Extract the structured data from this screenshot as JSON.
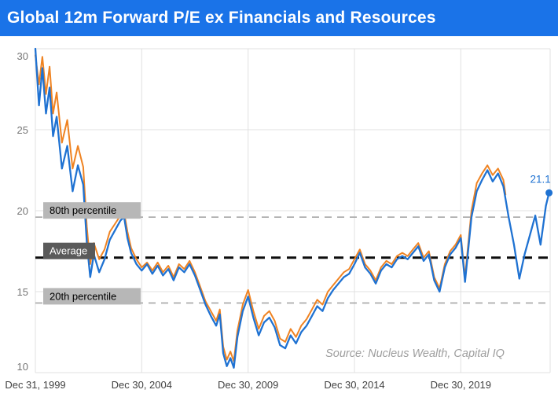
{
  "header": {
    "title": "Global 12m Forward P/E ex Financials and Resources",
    "bg_color": "#1a73e8",
    "text_color": "#ffffff"
  },
  "chart_data": {
    "type": "line",
    "title": "Global 12m Forward P/E ex Financials and Resources",
    "xlabel": "",
    "ylabel": "",
    "xlim": [
      2000,
      2024.2
    ],
    "ylim": [
      10,
      30
    ],
    "grid": true,
    "legend_position": "none",
    "yticks": [
      10,
      15,
      20,
      25,
      30
    ],
    "xticks": [
      {
        "value": 2000,
        "label": "Dec 31, 1999"
      },
      {
        "value": 2005,
        "label": "Dec 30, 2004"
      },
      {
        "value": 2010,
        "label": "Dec 30, 2009"
      },
      {
        "value": 2015,
        "label": "Dec 30, 2014"
      },
      {
        "value": 2020,
        "label": "Dec 30, 2019"
      }
    ],
    "reference_lines": [
      {
        "label": "80th percentile",
        "value": 19.6,
        "style": "dashed",
        "line_color": "#a6a6a6",
        "box_bg": "#b7b7b7",
        "text_color": "#000000"
      },
      {
        "label": "Average",
        "value": 17.1,
        "style": "dashed-bold",
        "line_color": "#0d0d0d",
        "box_bg": "#5a5a5a",
        "text_color": "#ffffff"
      },
      {
        "label": "20th percentile",
        "value": 14.3,
        "style": "dashed",
        "line_color": "#a6a6a6",
        "box_bg": "#b7b7b7",
        "text_color": "#000000"
      }
    ],
    "series": [
      {
        "name": "orange",
        "color": "#ef8322",
        "width": 2,
        "points": [
          [
            2000.0,
            29.6
          ],
          [
            2000.17,
            27.8
          ],
          [
            2000.33,
            29.5
          ],
          [
            2000.5,
            27.2
          ],
          [
            2000.67,
            28.9
          ],
          [
            2000.83,
            26.0
          ],
          [
            2001.0,
            27.3
          ],
          [
            2001.25,
            24.2
          ],
          [
            2001.5,
            25.6
          ],
          [
            2001.75,
            22.6
          ],
          [
            2002.0,
            24.0
          ],
          [
            2002.25,
            22.7
          ],
          [
            2002.42,
            19.0
          ],
          [
            2002.58,
            16.7
          ],
          [
            2002.75,
            18.0
          ],
          [
            2003.0,
            17.0
          ],
          [
            2003.25,
            17.6
          ],
          [
            2003.5,
            18.7
          ],
          [
            2003.75,
            19.2
          ],
          [
            2004.0,
            19.7
          ],
          [
            2004.17,
            19.9
          ],
          [
            2004.33,
            18.7
          ],
          [
            2004.5,
            17.7
          ],
          [
            2004.75,
            17.0
          ],
          [
            2005.0,
            16.5
          ],
          [
            2005.25,
            16.8
          ],
          [
            2005.5,
            16.3
          ],
          [
            2005.75,
            16.8
          ],
          [
            2006.0,
            16.2
          ],
          [
            2006.25,
            16.6
          ],
          [
            2006.5,
            15.9
          ],
          [
            2006.75,
            16.7
          ],
          [
            2007.0,
            16.4
          ],
          [
            2007.25,
            16.9
          ],
          [
            2007.5,
            16.2
          ],
          [
            2007.75,
            15.3
          ],
          [
            2008.0,
            14.4
          ],
          [
            2008.25,
            13.8
          ],
          [
            2008.5,
            13.2
          ],
          [
            2008.67,
            13.9
          ],
          [
            2008.83,
            11.6
          ],
          [
            2009.0,
            10.8
          ],
          [
            2009.17,
            11.3
          ],
          [
            2009.33,
            10.7
          ],
          [
            2009.5,
            12.6
          ],
          [
            2009.75,
            14.2
          ],
          [
            2010.0,
            15.1
          ],
          [
            2010.25,
            13.8
          ],
          [
            2010.5,
            12.7
          ],
          [
            2010.75,
            13.5
          ],
          [
            2011.0,
            13.8
          ],
          [
            2011.25,
            13.2
          ],
          [
            2011.5,
            12.1
          ],
          [
            2011.75,
            11.9
          ],
          [
            2012.0,
            12.7
          ],
          [
            2012.25,
            12.2
          ],
          [
            2012.5,
            12.9
          ],
          [
            2012.75,
            13.3
          ],
          [
            2013.0,
            13.9
          ],
          [
            2013.25,
            14.5
          ],
          [
            2013.5,
            14.2
          ],
          [
            2013.75,
            15.0
          ],
          [
            2014.0,
            15.4
          ],
          [
            2014.25,
            15.8
          ],
          [
            2014.5,
            16.2
          ],
          [
            2014.75,
            16.4
          ],
          [
            2015.0,
            17.0
          ],
          [
            2015.25,
            17.6
          ],
          [
            2015.5,
            16.7
          ],
          [
            2015.75,
            16.3
          ],
          [
            2016.0,
            15.7
          ],
          [
            2016.25,
            16.5
          ],
          [
            2016.5,
            16.9
          ],
          [
            2016.75,
            16.7
          ],
          [
            2017.0,
            17.2
          ],
          [
            2017.25,
            17.4
          ],
          [
            2017.5,
            17.2
          ],
          [
            2017.75,
            17.6
          ],
          [
            2018.0,
            18.0
          ],
          [
            2018.25,
            17.1
          ],
          [
            2018.5,
            17.5
          ],
          [
            2018.75,
            15.9
          ],
          [
            2019.0,
            15.2
          ],
          [
            2019.25,
            16.7
          ],
          [
            2019.5,
            17.5
          ],
          [
            2019.75,
            17.9
          ],
          [
            2020.0,
            18.5
          ],
          [
            2020.2,
            15.9
          ],
          [
            2020.5,
            20.0
          ],
          [
            2020.75,
            21.7
          ],
          [
            2021.0,
            22.3
          ],
          [
            2021.25,
            22.8
          ],
          [
            2021.5,
            22.2
          ],
          [
            2021.75,
            22.6
          ],
          [
            2022.0,
            21.9
          ],
          [
            2022.1,
            21.0
          ]
        ]
      },
      {
        "name": "blue",
        "color": "#1f72d2",
        "width": 2.3,
        "points": [
          [
            2000.0,
            30.0
          ],
          [
            2000.17,
            26.5
          ],
          [
            2000.33,
            28.8
          ],
          [
            2000.5,
            26.0
          ],
          [
            2000.67,
            27.6
          ],
          [
            2000.83,
            24.6
          ],
          [
            2001.0,
            25.8
          ],
          [
            2001.25,
            22.6
          ],
          [
            2001.5,
            24.0
          ],
          [
            2001.75,
            21.2
          ],
          [
            2002.0,
            22.8
          ],
          [
            2002.25,
            21.6
          ],
          [
            2002.42,
            18.0
          ],
          [
            2002.58,
            15.9
          ],
          [
            2002.75,
            17.3
          ],
          [
            2003.0,
            16.2
          ],
          [
            2003.25,
            17.0
          ],
          [
            2003.5,
            18.2
          ],
          [
            2003.75,
            18.8
          ],
          [
            2004.0,
            19.4
          ],
          [
            2004.17,
            19.6
          ],
          [
            2004.33,
            18.3
          ],
          [
            2004.5,
            17.4
          ],
          [
            2004.75,
            16.7
          ],
          [
            2005.0,
            16.3
          ],
          [
            2005.25,
            16.7
          ],
          [
            2005.5,
            16.1
          ],
          [
            2005.75,
            16.6
          ],
          [
            2006.0,
            16.0
          ],
          [
            2006.25,
            16.4
          ],
          [
            2006.5,
            15.7
          ],
          [
            2006.75,
            16.5
          ],
          [
            2007.0,
            16.2
          ],
          [
            2007.25,
            16.7
          ],
          [
            2007.5,
            16.0
          ],
          [
            2007.75,
            15.1
          ],
          [
            2008.0,
            14.2
          ],
          [
            2008.25,
            13.5
          ],
          [
            2008.5,
            12.9
          ],
          [
            2008.67,
            13.6
          ],
          [
            2008.83,
            11.2
          ],
          [
            2009.0,
            10.4
          ],
          [
            2009.17,
            10.9
          ],
          [
            2009.33,
            10.3
          ],
          [
            2009.5,
            12.2
          ],
          [
            2009.75,
            13.8
          ],
          [
            2010.0,
            14.7
          ],
          [
            2010.25,
            13.4
          ],
          [
            2010.5,
            12.3
          ],
          [
            2010.75,
            13.1
          ],
          [
            2011.0,
            13.4
          ],
          [
            2011.25,
            12.8
          ],
          [
            2011.5,
            11.7
          ],
          [
            2011.75,
            11.5
          ],
          [
            2012.0,
            12.3
          ],
          [
            2012.25,
            11.8
          ],
          [
            2012.5,
            12.5
          ],
          [
            2012.75,
            12.9
          ],
          [
            2013.0,
            13.5
          ],
          [
            2013.25,
            14.1
          ],
          [
            2013.5,
            13.8
          ],
          [
            2013.75,
            14.6
          ],
          [
            2014.0,
            15.1
          ],
          [
            2014.25,
            15.5
          ],
          [
            2014.5,
            15.9
          ],
          [
            2014.75,
            16.1
          ],
          [
            2015.0,
            16.7
          ],
          [
            2015.25,
            17.4
          ],
          [
            2015.5,
            16.5
          ],
          [
            2015.75,
            16.1
          ],
          [
            2016.0,
            15.5
          ],
          [
            2016.25,
            16.3
          ],
          [
            2016.5,
            16.7
          ],
          [
            2016.75,
            16.5
          ],
          [
            2017.0,
            17.0
          ],
          [
            2017.25,
            17.2
          ],
          [
            2017.5,
            17.0
          ],
          [
            2017.75,
            17.4
          ],
          [
            2018.0,
            17.8
          ],
          [
            2018.25,
            16.9
          ],
          [
            2018.5,
            17.3
          ],
          [
            2018.75,
            15.7
          ],
          [
            2019.0,
            15.0
          ],
          [
            2019.25,
            16.5
          ],
          [
            2019.5,
            17.3
          ],
          [
            2019.75,
            17.7
          ],
          [
            2020.0,
            18.3
          ],
          [
            2020.2,
            15.6
          ],
          [
            2020.5,
            19.6
          ],
          [
            2020.75,
            21.2
          ],
          [
            2021.0,
            21.9
          ],
          [
            2021.25,
            22.5
          ],
          [
            2021.5,
            21.8
          ],
          [
            2021.75,
            22.3
          ],
          [
            2022.0,
            21.5
          ],
          [
            2022.25,
            19.6
          ],
          [
            2022.5,
            17.9
          ],
          [
            2022.75,
            15.8
          ],
          [
            2023.0,
            17.3
          ],
          [
            2023.25,
            18.5
          ],
          [
            2023.5,
            19.7
          ],
          [
            2023.75,
            17.9
          ],
          [
            2024.0,
            20.3
          ],
          [
            2024.15,
            21.1
          ]
        ]
      }
    ],
    "end_point": {
      "x": 2024.15,
      "value": 21.1,
      "label": "21.1",
      "color": "#1f72d2"
    },
    "source": "Source: Nucleus Wealth, Capital IQ",
    "colors": {
      "gridline": "#e0e0e0",
      "y_tick_label": "#757575",
      "x_tick_label": "#424242",
      "source_text": "#9e9e9e"
    }
  }
}
